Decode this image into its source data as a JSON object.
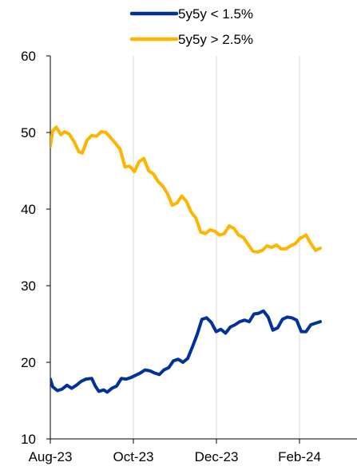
{
  "chart_data": {
    "type": "line",
    "title": "",
    "xlabel": "",
    "ylabel": "",
    "ylim": [
      10,
      60
    ],
    "yticks": [
      10,
      20,
      30,
      40,
      50,
      60
    ],
    "xticks": [
      "Aug-23",
      "Oct-23",
      "Dec-23",
      "Feb-24"
    ],
    "xlim": [
      "2023-08-01",
      "2024-04-16"
    ],
    "grid": "vertical",
    "legend_position": "top",
    "series": [
      {
        "name": "5y5y < 1.5%",
        "color": "#003299",
        "points": [
          [
            "2023-08-01",
            17.8
          ],
          [
            "2023-08-03",
            16.8
          ],
          [
            "2023-08-07",
            16.3
          ],
          [
            "2023-08-11",
            16.5
          ],
          [
            "2023-08-15",
            17.0
          ],
          [
            "2023-08-19",
            16.6
          ],
          [
            "2023-08-23",
            17.0
          ],
          [
            "2023-08-27",
            17.5
          ],
          [
            "2023-08-31",
            17.8
          ],
          [
            "2023-09-05",
            17.9
          ],
          [
            "2023-09-08",
            16.9
          ],
          [
            "2023-09-11",
            16.2
          ],
          [
            "2023-09-15",
            16.4
          ],
          [
            "2023-09-18",
            16.1
          ],
          [
            "2023-09-22",
            16.6
          ],
          [
            "2023-09-26",
            16.9
          ],
          [
            "2023-09-30",
            17.9
          ],
          [
            "2023-10-04",
            17.8
          ],
          [
            "2023-10-08",
            18.0
          ],
          [
            "2023-10-12",
            18.3
          ],
          [
            "2023-10-16",
            18.6
          ],
          [
            "2023-10-20",
            19.0
          ],
          [
            "2023-10-24",
            18.9
          ],
          [
            "2023-10-28",
            18.6
          ],
          [
            "2023-11-01",
            18.4
          ],
          [
            "2023-11-05",
            19.0
          ],
          [
            "2023-11-09",
            19.3
          ],
          [
            "2023-11-13",
            20.2
          ],
          [
            "2023-11-17",
            20.4
          ],
          [
            "2023-11-21",
            20.0
          ],
          [
            "2023-11-25",
            20.5
          ],
          [
            "2023-11-29",
            22.0
          ],
          [
            "2023-12-03",
            23.6
          ],
          [
            "2023-12-07",
            25.6
          ],
          [
            "2023-12-11",
            25.8
          ],
          [
            "2023-12-15",
            25.2
          ],
          [
            "2023-12-19",
            24.0
          ],
          [
            "2023-12-23",
            24.3
          ],
          [
            "2023-12-27",
            23.8
          ],
          [
            "2023-12-31",
            24.6
          ],
          [
            "2024-01-04",
            24.9
          ],
          [
            "2024-01-08",
            25.3
          ],
          [
            "2024-01-12",
            25.5
          ],
          [
            "2024-01-16",
            25.3
          ],
          [
            "2024-01-20",
            26.3
          ],
          [
            "2024-01-24",
            26.4
          ],
          [
            "2024-01-28",
            26.7
          ],
          [
            "2024-02-01",
            25.9
          ],
          [
            "2024-02-05",
            24.2
          ],
          [
            "2024-02-09",
            24.5
          ],
          [
            "2024-02-13",
            25.6
          ],
          [
            "2024-02-17",
            25.9
          ],
          [
            "2024-02-21",
            25.8
          ],
          [
            "2024-02-25",
            25.5
          ],
          [
            "2024-02-29",
            24.0
          ],
          [
            "2024-03-04",
            24.0
          ],
          [
            "2024-03-08",
            24.9
          ],
          [
            "2024-03-12",
            25.1
          ],
          [
            "2024-03-16",
            25.3
          ]
        ]
      },
      {
        "name": "5y5y > 2.5%",
        "color": "#FFB400",
        "points": [
          [
            "2023-08-01",
            48.2
          ],
          [
            "2023-08-03",
            50.2
          ],
          [
            "2023-08-06",
            50.7
          ],
          [
            "2023-08-10",
            49.7
          ],
          [
            "2023-08-13",
            50.1
          ],
          [
            "2023-08-17",
            49.8
          ],
          [
            "2023-08-21",
            48.8
          ],
          [
            "2023-08-25",
            47.5
          ],
          [
            "2023-08-28",
            47.3
          ],
          [
            "2023-09-01",
            49.0
          ],
          [
            "2023-09-05",
            49.6
          ],
          [
            "2023-09-09",
            49.5
          ],
          [
            "2023-09-13",
            50.1
          ],
          [
            "2023-09-17",
            50.0
          ],
          [
            "2023-09-21",
            49.3
          ],
          [
            "2023-09-25",
            48.6
          ],
          [
            "2023-09-29",
            47.8
          ],
          [
            "2023-10-03",
            45.5
          ],
          [
            "2023-10-07",
            45.6
          ],
          [
            "2023-10-11",
            44.9
          ],
          [
            "2023-10-15",
            46.2
          ],
          [
            "2023-10-19",
            46.6
          ],
          [
            "2023-10-23",
            45.0
          ],
          [
            "2023-10-27",
            44.6
          ],
          [
            "2023-10-31",
            43.6
          ],
          [
            "2023-11-04",
            43.0
          ],
          [
            "2023-11-08",
            42.0
          ],
          [
            "2023-11-12",
            40.5
          ],
          [
            "2023-11-16",
            40.8
          ],
          [
            "2023-11-20",
            41.7
          ],
          [
            "2023-11-24",
            41.0
          ],
          [
            "2023-11-28",
            39.6
          ],
          [
            "2023-12-02",
            38.8
          ],
          [
            "2023-12-06",
            37.0
          ],
          [
            "2023-12-10",
            36.8
          ],
          [
            "2023-12-14",
            37.3
          ],
          [
            "2023-12-18",
            37.1
          ],
          [
            "2023-12-22",
            36.6
          ],
          [
            "2023-12-26",
            36.8
          ],
          [
            "2023-12-30",
            37.8
          ],
          [
            "2024-01-03",
            37.5
          ],
          [
            "2024-01-07",
            36.6
          ],
          [
            "2024-01-11",
            36.3
          ],
          [
            "2024-01-15",
            35.4
          ],
          [
            "2024-01-19",
            34.5
          ],
          [
            "2024-01-23",
            34.4
          ],
          [
            "2024-01-27",
            34.6
          ],
          [
            "2024-01-31",
            35.2
          ],
          [
            "2024-02-04",
            35.0
          ],
          [
            "2024-02-08",
            35.3
          ],
          [
            "2024-02-12",
            34.8
          ],
          [
            "2024-02-16",
            34.8
          ],
          [
            "2024-02-20",
            35.2
          ],
          [
            "2024-02-24",
            35.5
          ],
          [
            "2024-02-28",
            36.2
          ],
          [
            "2024-03-04",
            36.6
          ],
          [
            "2024-03-08",
            35.5
          ],
          [
            "2024-03-12",
            34.6
          ],
          [
            "2024-03-16",
            34.9
          ]
        ]
      }
    ]
  }
}
